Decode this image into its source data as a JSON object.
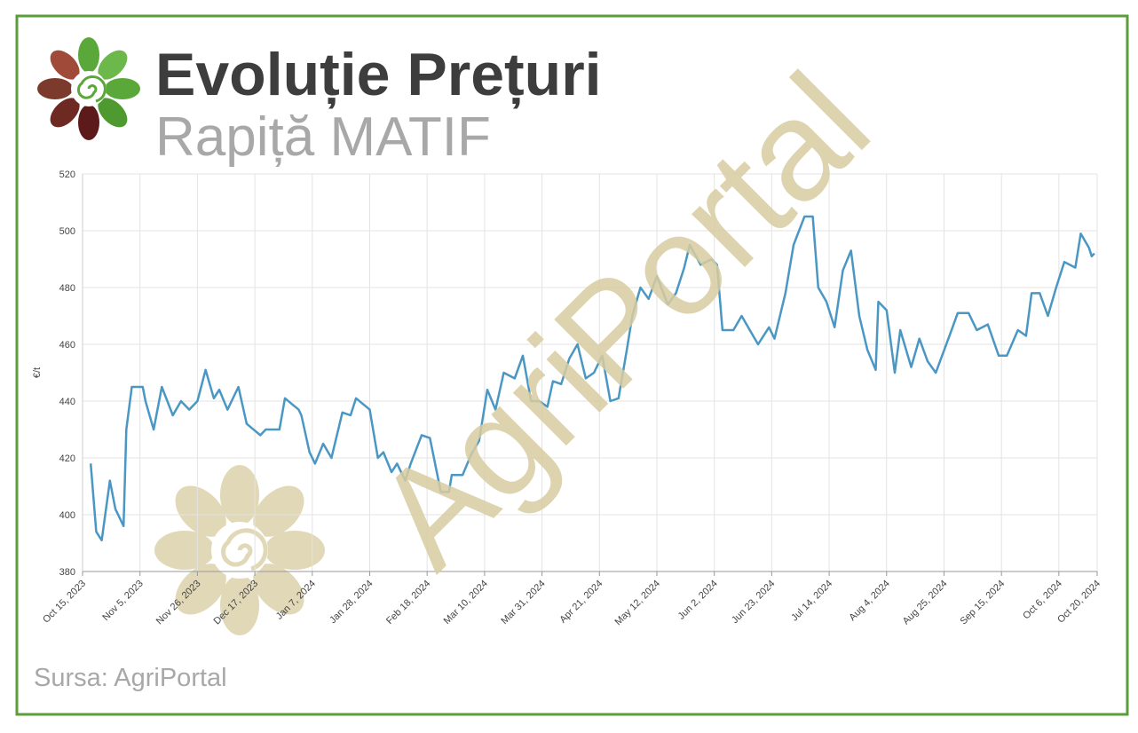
{
  "title": "Evoluție Prețuri",
  "subtitle": "Rapiță MATIF",
  "source": "Sursa: AgriPortal",
  "watermark": "AgriPortal",
  "chart_data": {
    "type": "line",
    "ylabel": "€/t",
    "grid": true,
    "xlim": [
      "2023-10-15",
      "2024-10-20"
    ],
    "xticks": [
      {
        "value": "2023-10-15",
        "label": "Oct 15, 2023"
      },
      {
        "value": "2023-11-05",
        "label": "Nov 5, 2023"
      },
      {
        "value": "2023-11-26",
        "label": "Nov 26, 2023"
      },
      {
        "value": "2023-12-17",
        "label": "Dec 17, 2023"
      },
      {
        "value": "2024-01-07",
        "label": "Jan 7, 2024"
      },
      {
        "value": "2024-01-28",
        "label": "Jan 28, 2024"
      },
      {
        "value": "2024-02-18",
        "label": "Feb 18, 2024"
      },
      {
        "value": "2024-03-10",
        "label": "Mar 10, 2024"
      },
      {
        "value": "2024-03-31",
        "label": "Mar 31, 2024"
      },
      {
        "value": "2024-04-21",
        "label": "Apr 21, 2024"
      },
      {
        "value": "2024-05-12",
        "label": "May 12, 2024"
      },
      {
        "value": "2024-06-02",
        "label": "Jun 2, 2024"
      },
      {
        "value": "2024-06-23",
        "label": "Jun 23, 2024"
      },
      {
        "value": "2024-07-14",
        "label": "Jul 14, 2024"
      },
      {
        "value": "2024-08-04",
        "label": "Aug 4, 2024"
      },
      {
        "value": "2024-08-25",
        "label": "Aug 25, 2024"
      },
      {
        "value": "2024-09-15",
        "label": "Sep 15, 2024"
      },
      {
        "value": "2024-10-06",
        "label": "Oct 6, 2024"
      },
      {
        "value": "2024-10-20",
        "label": "Oct 20, 2024"
      }
    ],
    "ylim": [
      380,
      520
    ],
    "yticks": [
      380,
      400,
      420,
      440,
      460,
      480,
      500,
      520
    ],
    "x": [
      "2023-10-18",
      "2023-10-20",
      "2023-10-22",
      "2023-10-25",
      "2023-10-27",
      "2023-10-30",
      "2023-10-31",
      "2023-11-02",
      "2023-11-06",
      "2023-11-07",
      "2023-11-10",
      "2023-11-13",
      "2023-11-17",
      "2023-11-20",
      "2023-11-23",
      "2023-11-26",
      "2023-11-29",
      "2023-12-02",
      "2023-12-04",
      "2023-12-07",
      "2023-12-11",
      "2023-12-14",
      "2023-12-19",
      "2023-12-21",
      "2023-12-26",
      "2023-12-28",
      "2024-01-02",
      "2024-01-03",
      "2024-01-06",
      "2024-01-08",
      "2024-01-11",
      "2024-01-14",
      "2024-01-18",
      "2024-01-21",
      "2024-01-23",
      "2024-01-28",
      "2024-01-31",
      "2024-02-02",
      "2024-02-05",
      "2024-02-07",
      "2024-02-10",
      "2024-02-12",
      "2024-02-16",
      "2024-02-19",
      "2024-02-23",
      "2024-02-26",
      "2024-02-27",
      "2024-03-02",
      "2024-03-05",
      "2024-03-08",
      "2024-03-11",
      "2024-03-14",
      "2024-03-17",
      "2024-03-21",
      "2024-03-24",
      "2024-03-27",
      "2024-03-30",
      "2024-04-02",
      "2024-04-04",
      "2024-04-07",
      "2024-04-10",
      "2024-04-13",
      "2024-04-16",
      "2024-04-19",
      "2024-04-22",
      "2024-04-25",
      "2024-04-28",
      "2024-05-01",
      "2024-05-03",
      "2024-05-06",
      "2024-05-09",
      "2024-05-12",
      "2024-05-16",
      "2024-05-19",
      "2024-05-22",
      "2024-05-24",
      "2024-05-28",
      "2024-06-01",
      "2024-06-03",
      "2024-06-05",
      "2024-06-09",
      "2024-06-12",
      "2024-06-15",
      "2024-06-18",
      "2024-06-22",
      "2024-06-24",
      "2024-06-28",
      "2024-07-01",
      "2024-07-05",
      "2024-07-08",
      "2024-07-10",
      "2024-07-13",
      "2024-07-16",
      "2024-07-19",
      "2024-07-22",
      "2024-07-25",
      "2024-07-28",
      "2024-07-31",
      "2024-08-01",
      "2024-08-04",
      "2024-08-07",
      "2024-08-09",
      "2024-08-13",
      "2024-08-16",
      "2024-08-19",
      "2024-08-22",
      "2024-08-27",
      "2024-08-30",
      "2024-09-03",
      "2024-09-06",
      "2024-09-10",
      "2024-09-14",
      "2024-09-17",
      "2024-09-21",
      "2024-09-24",
      "2024-09-26",
      "2024-09-29",
      "2024-10-02",
      "2024-10-05",
      "2024-10-08",
      "2024-10-12",
      "2024-10-14",
      "2024-10-17",
      "2024-10-18",
      "2024-10-19"
    ],
    "series": [
      {
        "name": "Rapiță MATIF",
        "color": "#4a97c4",
        "values": [
          418,
          394,
          391,
          412,
          402,
          396,
          430,
          445,
          445,
          440,
          430,
          445,
          435,
          440,
          437,
          440,
          451,
          441,
          444,
          437,
          445,
          432,
          428,
          430,
          430,
          441,
          437,
          435,
          422,
          418,
          425,
          420,
          436,
          435,
          441,
          437,
          420,
          422,
          415,
          418,
          412,
          418,
          428,
          427,
          408,
          408,
          414,
          414,
          421,
          426,
          444,
          437,
          450,
          448,
          456,
          440,
          440,
          438,
          447,
          446,
          455,
          460,
          448,
          450,
          456,
          440,
          441,
          458,
          470,
          480,
          476,
          484,
          474,
          478,
          487,
          495,
          488,
          490,
          488,
          465,
          465,
          470,
          465,
          460,
          466,
          462,
          478,
          495,
          505,
          505,
          480,
          475,
          466,
          486,
          493,
          470,
          458,
          451,
          475,
          472,
          450,
          465,
          452,
          462,
          454,
          450,
          463,
          471,
          471,
          465,
          467,
          456,
          456,
          465,
          463,
          478,
          478,
          470,
          480,
          489,
          487,
          499,
          494,
          491,
          492
        ]
      }
    ]
  }
}
